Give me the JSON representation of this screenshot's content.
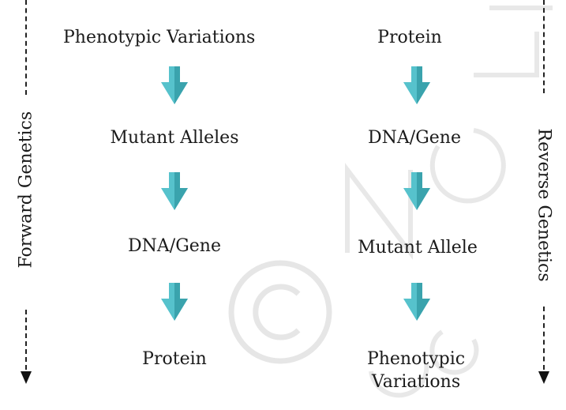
{
  "colors": {
    "arrow": "#56c2cc",
    "arrow_dark": "#3aa3ad",
    "text": "#1a1a1a",
    "watermark": "#e6e6e6"
  },
  "watermark": {
    "text": "© NCERT not to be republished",
    "icon": "copyright-icon"
  },
  "left_column": {
    "steps": [
      "Phenotypic Variations",
      "Mutant Alleles",
      "DNA/Gene",
      "Protein"
    ],
    "side_label": "Forward Genetics"
  },
  "right_column": {
    "steps": [
      "Protein",
      "DNA/Gene",
      "Mutant Allele",
      "Phenotypic",
      "Variations"
    ],
    "side_label": "Reverse Genetics"
  }
}
